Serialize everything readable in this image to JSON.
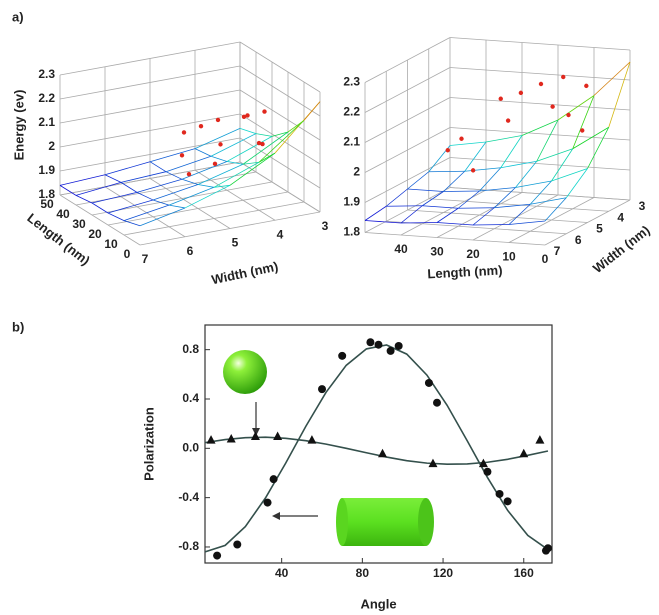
{
  "panel_labels": [
    "a)",
    "b)"
  ],
  "chart_data": [
    {
      "type": "surface3d",
      "x_label": "Width (nm)",
      "y_label": "Length (nm)",
      "z_label": "Energy (ev)",
      "xlim": [
        7,
        3
      ],
      "ylim": [
        0,
        50
      ],
      "zlim": [
        1.8,
        2.3
      ],
      "xticks": [
        7,
        6,
        5,
        4,
        3
      ],
      "yticks": [
        0,
        10,
        20,
        30,
        40,
        50
      ],
      "zticks": [
        1.8,
        1.9,
        2,
        2.1,
        2.2,
        2.3
      ],
      "widths": [
        7,
        6,
        5,
        4,
        3
      ],
      "lengths": [
        0,
        10,
        20,
        30,
        40,
        50
      ],
      "energy": [
        [
          1.88,
          1.86,
          1.85,
          1.85,
          1.84,
          1.84
        ],
        [
          1.92,
          1.89,
          1.87,
          1.86,
          1.86,
          1.85
        ],
        [
          1.98,
          1.93,
          1.9,
          1.88,
          1.87,
          1.87
        ],
        [
          2.08,
          2,
          1.95,
          1.92,
          1.9,
          1.89
        ],
        [
          2.26,
          2.14,
          2.05,
          1.99,
          1.96,
          1.94
        ]
      ],
      "points": {
        "color": "#e0281e",
        "width": [
          4.5,
          4.2,
          4.8,
          3.8,
          4.0,
          5.0,
          4.6,
          3.9,
          4.4,
          5.2,
          4.1,
          3.7
        ],
        "length": [
          20,
          30,
          15,
          25,
          10,
          30,
          40,
          20,
          35,
          20,
          5,
          15
        ],
        "energy": [
          2.05,
          2.1,
          2.0,
          2.12,
          2.08,
          1.98,
          2.02,
          2.15,
          2.06,
          1.95,
          2.1,
          2.18
        ]
      }
    },
    {
      "type": "surface3d",
      "x_label": "Width (nm)",
      "y_label": "Length (nm)",
      "xlim": [
        7,
        3
      ],
      "ylim": [
        0,
        50
      ],
      "zlim": [
        1.8,
        2.3
      ],
      "xticks": [
        7,
        6,
        5,
        4,
        3
      ],
      "yticks": [
        0,
        10,
        20,
        30,
        40
      ],
      "zticks": [
        1.8,
        1.9,
        2,
        2.1,
        2.2,
        2.3
      ],
      "widths": [
        7,
        6,
        5,
        4,
        3
      ],
      "lengths": [
        0,
        10,
        20,
        30,
        40,
        50
      ],
      "energy": [
        [
          1.88,
          1.86,
          1.85,
          1.85,
          1.84,
          1.84
        ],
        [
          1.92,
          1.89,
          1.87,
          1.86,
          1.86,
          1.85
        ],
        [
          1.98,
          1.93,
          1.9,
          1.88,
          1.87,
          1.87
        ],
        [
          2.08,
          2,
          1.95,
          1.92,
          1.9,
          1.89
        ],
        [
          2.26,
          2.14,
          2.05,
          1.99,
          1.96,
          1.94
        ]
      ],
      "points": {
        "color": "#e0281e",
        "width": [
          4.0,
          4.5,
          3.8,
          5.0,
          4.2,
          3.6,
          4.8,
          4.4,
          3.9,
          5.3,
          4.1,
          3.7
        ],
        "length": [
          30,
          25,
          20,
          35,
          10,
          15,
          40,
          5,
          25,
          30,
          15,
          8
        ],
        "energy": [
          2.15,
          2.1,
          2.2,
          2.05,
          2.12,
          2.22,
          2.0,
          2.08,
          2.17,
          1.96,
          2.14,
          2.2
        ]
      }
    },
    {
      "type": "scatter",
      "x_label": "Angle",
      "y_label": "Polarization",
      "xlim": [
        2,
        174
      ],
      "ylim": [
        -0.93,
        1.0
      ],
      "xticks": [
        40,
        80,
        120,
        160
      ],
      "yticks": [
        -0.8,
        -0.4,
        {
          "value": 0,
          "label": "0.0"
        },
        0.4,
        0.8
      ],
      "series": [
        {
          "marker": "line",
          "color": "#34504c",
          "x": [
            2,
            12,
            22,
            32,
            42,
            52,
            62,
            72,
            82,
            92,
            102,
            112,
            122,
            132,
            142,
            152,
            162,
            172
          ],
          "values": [
            -0.84,
            -0.787,
            -0.635,
            -0.402,
            -0.12,
            0.179,
            0.454,
            0.673,
            0.806,
            0.838,
            0.764,
            0.594,
            0.349,
            0.06,
            -0.236,
            -0.503,
            -0.706,
            -0.821
          ]
        },
        {
          "marker": "line",
          "color": "#34504c",
          "x": [
            2,
            12,
            22,
            32,
            42,
            52,
            62,
            72,
            82,
            92,
            102,
            112,
            122,
            132,
            142,
            152,
            162,
            172
          ],
          "values": [
            0.046,
            0.071,
            0.086,
            0.09,
            0.081,
            0.062,
            0.034,
            0,
            -0.036,
            -0.071,
            -0.1,
            -0.12,
            -0.129,
            -0.127,
            -0.113,
            -0.089,
            -0.057,
            -0.022
          ]
        },
        {
          "marker": "circle",
          "color": "#111111",
          "x": [
            8,
            18,
            33,
            36,
            60,
            70,
            84,
            88,
            94,
            98,
            113,
            117,
            142,
            148,
            152,
            171,
            172
          ],
          "values": [
            -0.87,
            -0.78,
            -0.44,
            -0.25,
            0.48,
            0.75,
            0.86,
            0.84,
            0.79,
            0.83,
            0.53,
            0.37,
            -0.19,
            -0.37,
            -0.43,
            -0.83,
            -0.81
          ]
        },
        {
          "marker": "triangle",
          "color": "#111111",
          "x": [
            5,
            15,
            27,
            38,
            55,
            90,
            115,
            140,
            160,
            168
          ],
          "values": [
            0.07,
            0.08,
            0.1,
            0.1,
            0.07,
            -0.04,
            -0.12,
            -0.12,
            -0.04,
            0.07
          ]
        }
      ]
    }
  ]
}
